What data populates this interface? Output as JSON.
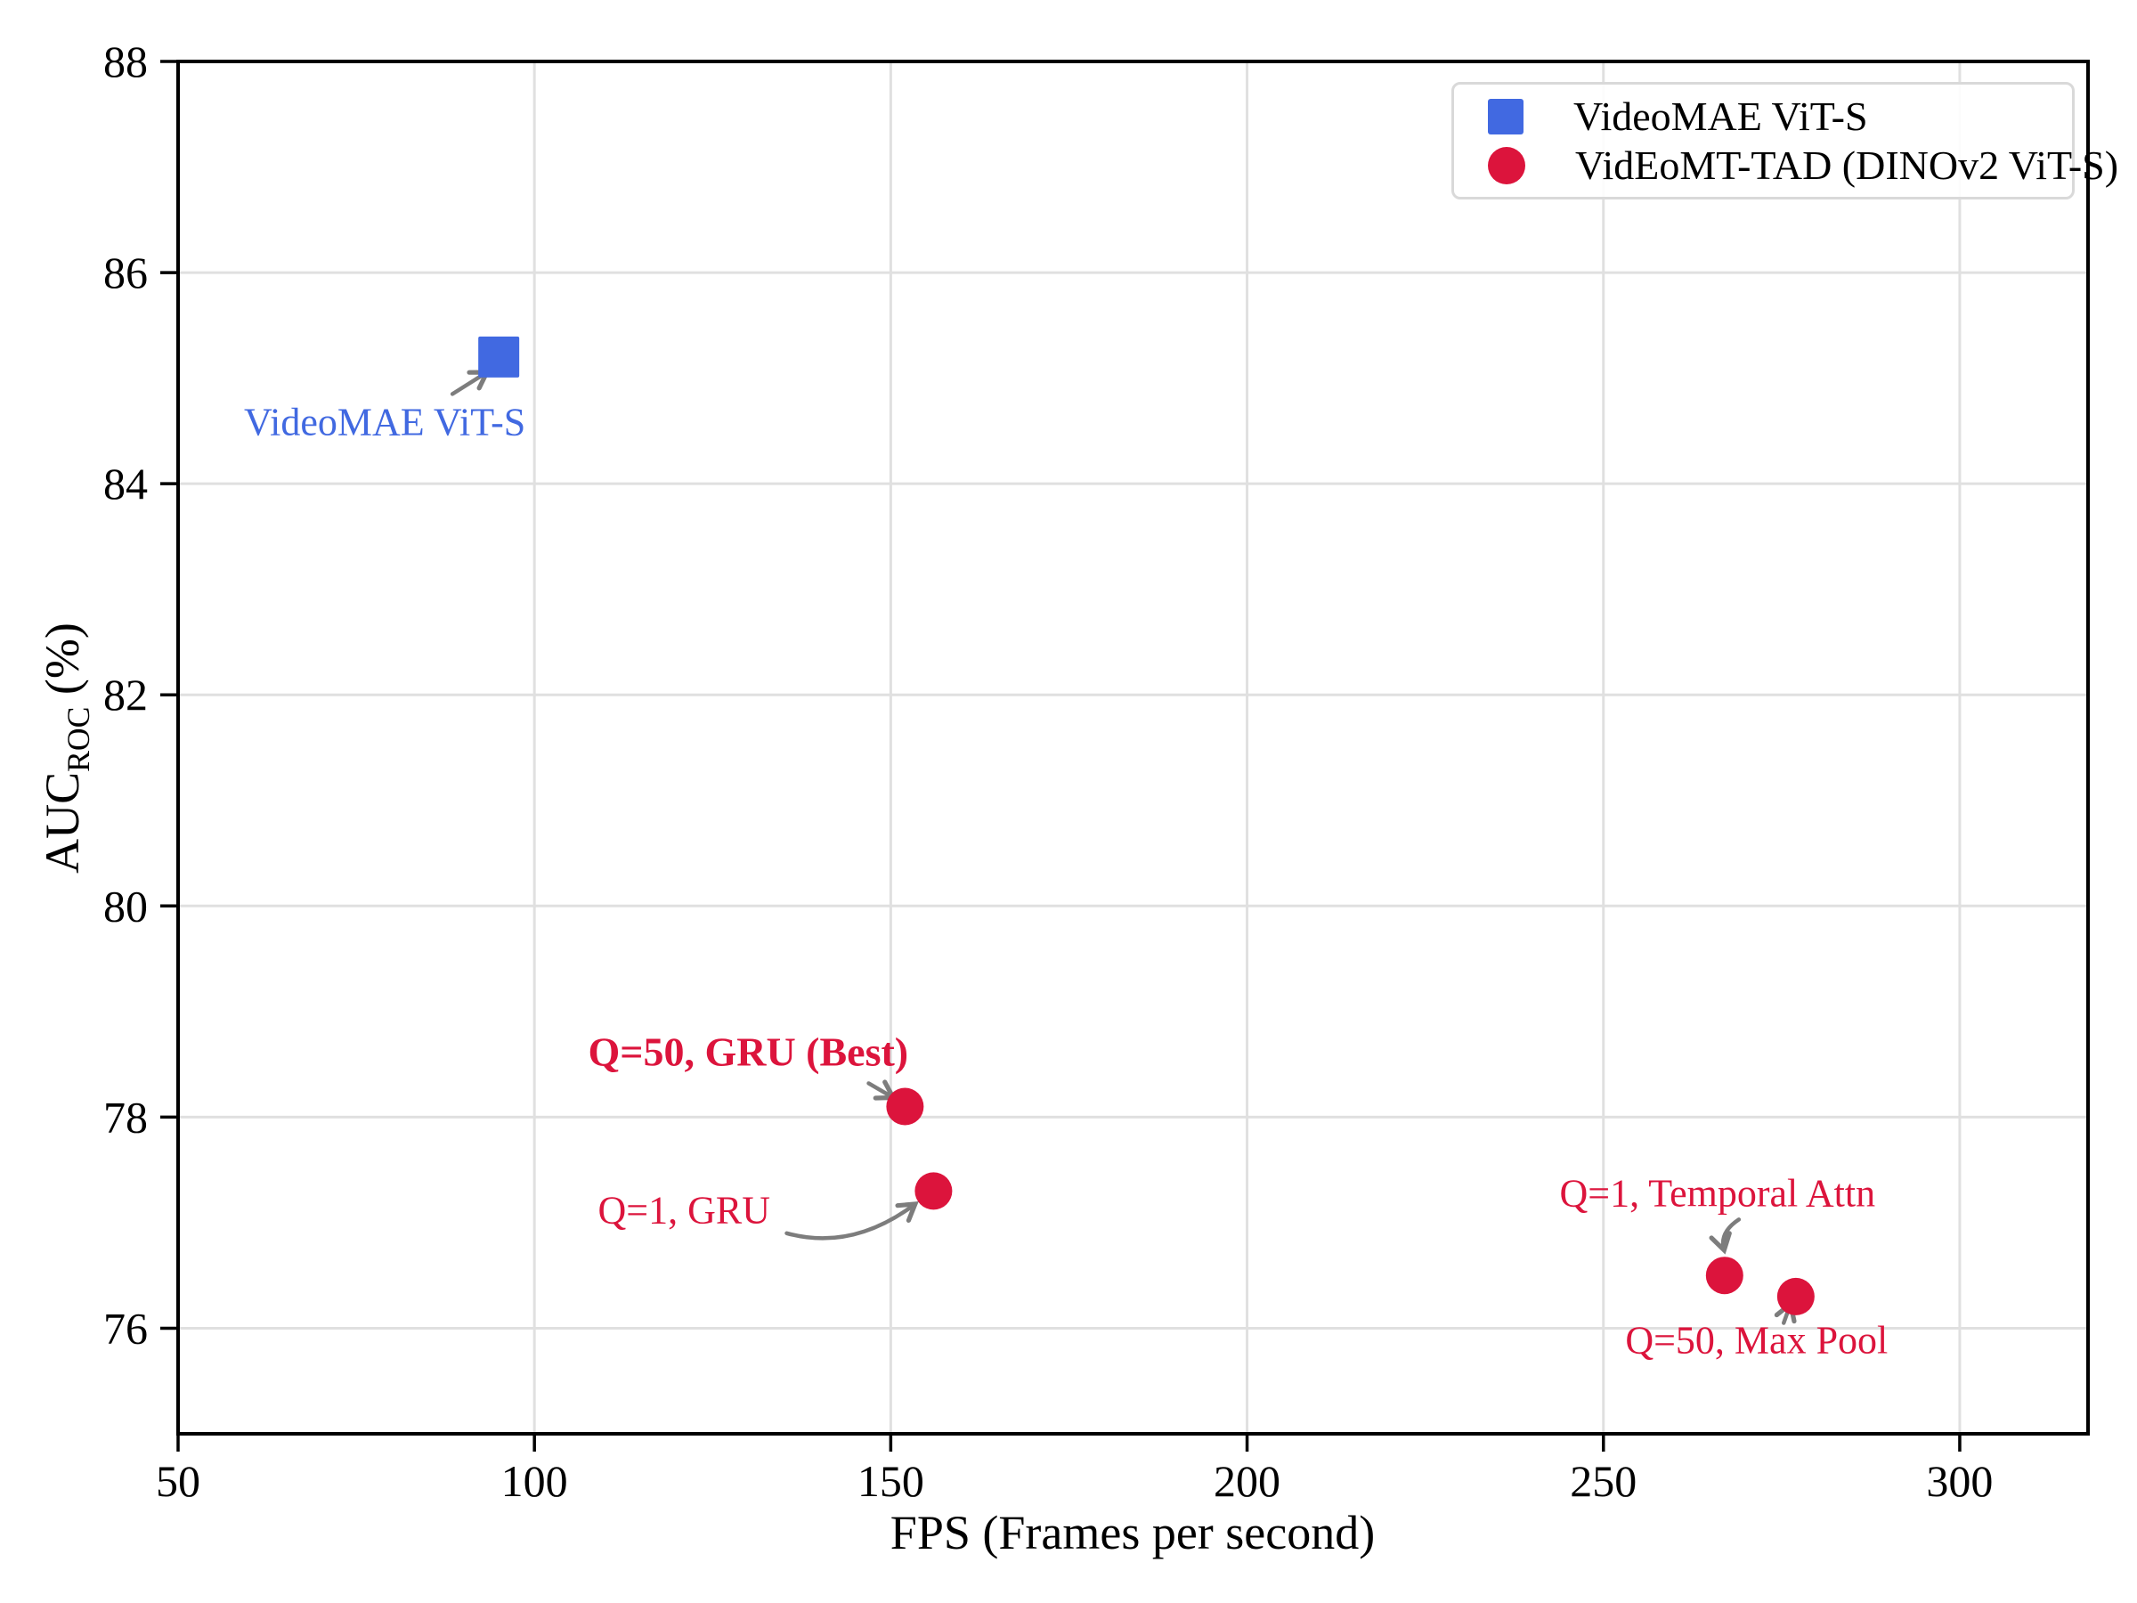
{
  "chart_data": {
    "type": "scatter",
    "title": "",
    "xlabel": "FPS (Frames per second)",
    "ylabel": {
      "main": "AUC",
      "sub": "ROC",
      "suffix": " (%)"
    },
    "xlim": [
      50,
      318
    ],
    "ylim": [
      75,
      88
    ],
    "x_ticks": [
      50,
      100,
      150,
      200,
      250,
      300
    ],
    "y_ticks": [
      76,
      78,
      80,
      82,
      84,
      86,
      88
    ],
    "grid": true,
    "legend_position": "top-right",
    "colors": {
      "videomae_blue": "#4169E1",
      "videomt_red": "#DC143C",
      "arrow_gray": "#7d7d7d",
      "grid_gray": "#e0e0e0",
      "legend_border": "#d9d9d9",
      "axis_black": "#000000"
    },
    "series": [
      {
        "name": "VideoMAE ViT-S",
        "marker": "square",
        "color": "#4169E1",
        "points": [
          {
            "x": 95,
            "y": 85.2,
            "label": "VideoMAE ViT-S"
          }
        ]
      },
      {
        "name": "VidEoMT-TAD (DINOv2 ViT-S)",
        "marker": "circle",
        "color": "#DC143C",
        "points": [
          {
            "x": 152,
            "y": 78.1,
            "label": "Q=50, GRU (Best)"
          },
          {
            "x": 156,
            "y": 77.3,
            "label": "Q=1, GRU"
          },
          {
            "x": 267,
            "y": 76.5,
            "label": "Q=1, Temporal Attn"
          },
          {
            "x": 277,
            "y": 76.3,
            "label": "Q=50, Max Pool"
          }
        ]
      }
    ],
    "annotations": [
      {
        "text": "VideoMAE ViT-S",
        "color": "#4169E1",
        "bold": false,
        "tx": 79,
        "ty": 84.58,
        "arrow": {
          "from": [
            88.5,
            84.85
          ],
          "to": [
            93.2,
            85.05
          ]
        }
      },
      {
        "text": "Q=50, GRU (Best)",
        "color": "#DC143C",
        "bold": true,
        "tx": 130,
        "ty": 78.62,
        "arrow": {
          "from": [
            146.9,
            78.32
          ],
          "to": [
            150.2,
            78.19
          ]
        }
      },
      {
        "text": "Q=1, GRU",
        "color": "#DC143C",
        "bold": false,
        "tx": 121,
        "ty": 77.12,
        "arrow": {
          "from": [
            135.4,
            76.9
          ],
          "ctrl": [
            144.5,
            76.73
          ],
          "to": [
            153.3,
            77.17
          ]
        }
      },
      {
        "text": "Q=1, Temporal Attn",
        "color": "#DC143C",
        "bold": false,
        "tx": 266,
        "ty": 77.28,
        "arrow": {
          "from": [
            269.0,
            77.03
          ],
          "ctrl": [
            266.3,
            76.91
          ],
          "to": [
            266.9,
            76.75
          ]
        }
      },
      {
        "text": "Q=50, Max Pool",
        "color": "#DC143C",
        "bold": false,
        "tx": 271.5,
        "ty": 75.89,
        "arrow": {
          "from": [
            275.3,
            76.05
          ],
          "to": [
            276.2,
            76.22
          ]
        }
      }
    ]
  }
}
